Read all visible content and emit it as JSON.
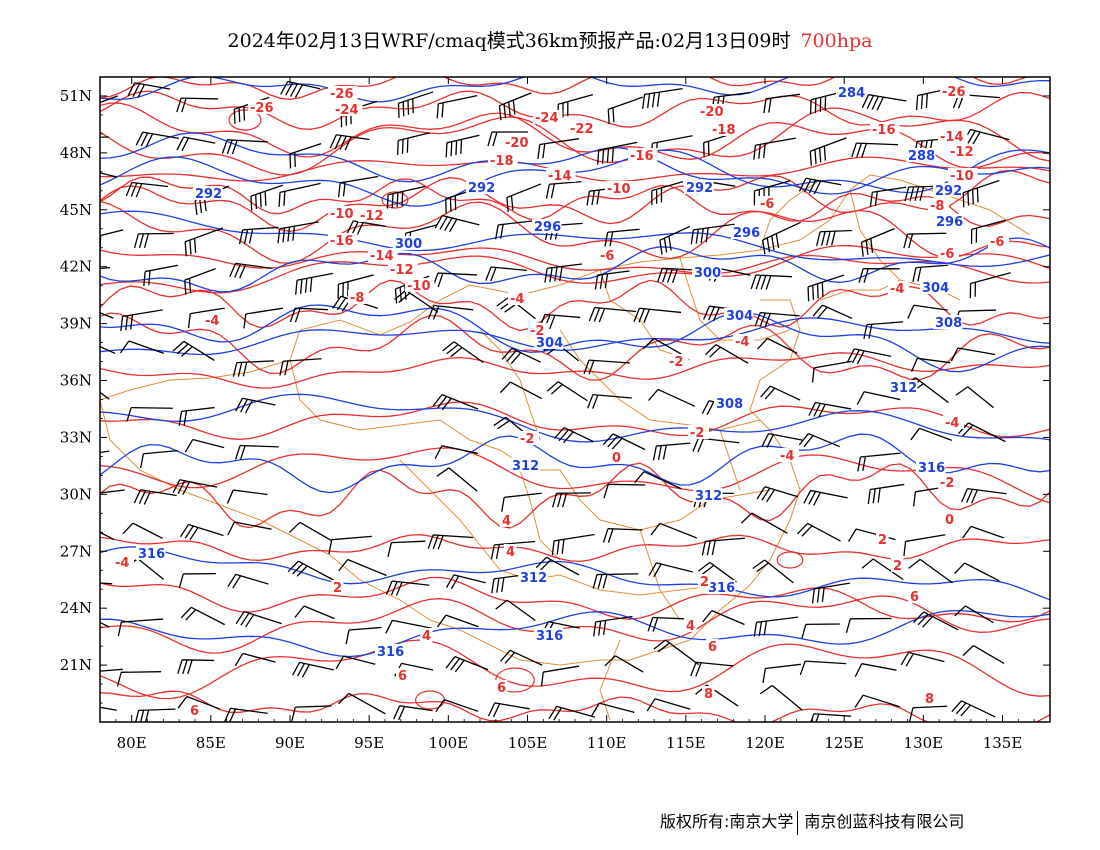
{
  "header": {
    "title": "2024年02月13日WRF/cmaq模式36km预报产品:02月13日09时",
    "level": "700hpa"
  },
  "map": {
    "lon_range": [
      78,
      138
    ],
    "lat_range": [
      18,
      52
    ],
    "lon_ticks": [
      "80E",
      "85E",
      "90E",
      "95E",
      "100E",
      "105E",
      "110E",
      "115E",
      "120E",
      "125E",
      "130E",
      "135E"
    ],
    "lat_ticks": [
      "51N",
      "48N",
      "45N",
      "42N",
      "39N",
      "36N",
      "33N",
      "30N",
      "27N",
      "24N",
      "21N"
    ],
    "colors": {
      "temperature": "#e83030",
      "geopotential": "#1f3fe0",
      "boundary": "#e0903a",
      "wind": "#000000"
    },
    "geopotential_labels": [
      "284",
      "288",
      "292",
      "296",
      "300",
      "304",
      "308",
      "312",
      "316"
    ],
    "temperature_labels": [
      "-26",
      "-24",
      "-22",
      "-20",
      "-18",
      "-16",
      "-14",
      "-12",
      "-10",
      "-8",
      "-6",
      "-4",
      "-2",
      "0",
      "2",
      "4",
      "6",
      "8"
    ]
  },
  "footer": {
    "copyright": "版权所有:南京大学",
    "company": "南京创蓝科技有限公司"
  }
}
